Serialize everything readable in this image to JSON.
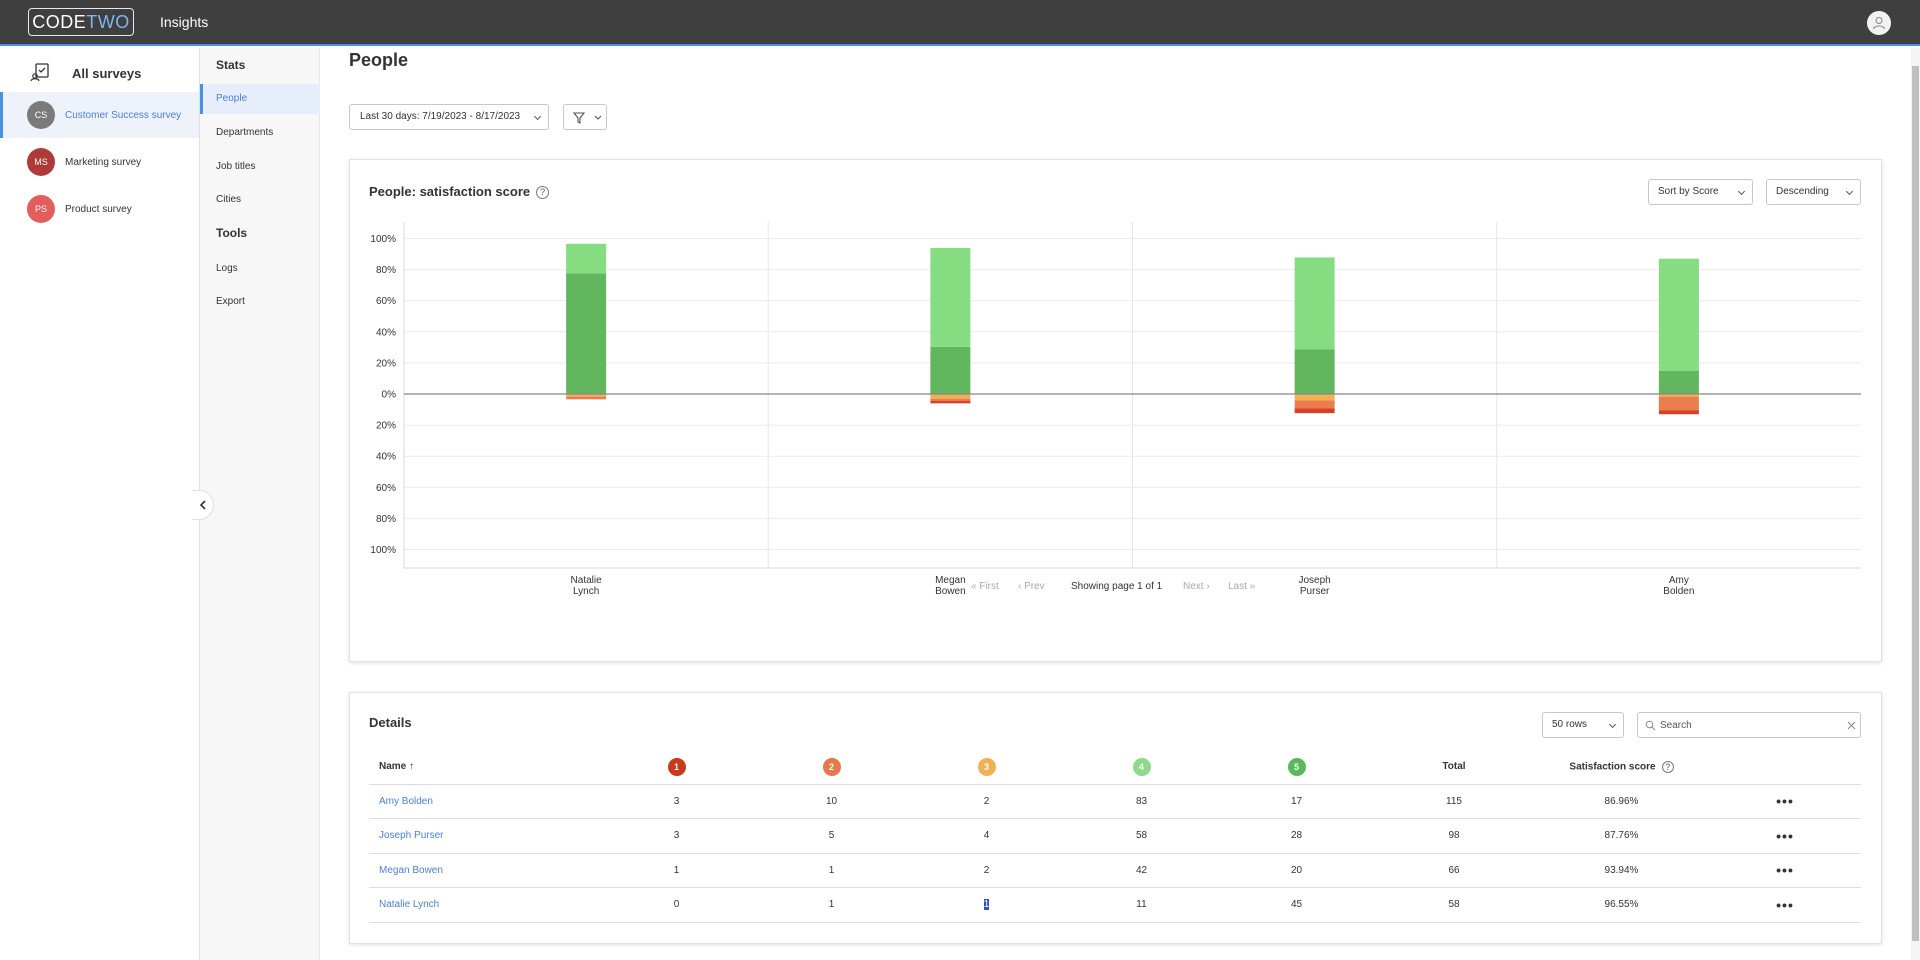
{
  "header": {
    "logo_code": "CODE",
    "logo_two": "TWO",
    "app_title": "Insights",
    "user_icon": "user-avatar-icon"
  },
  "surveys_panel": {
    "all_label": "All surveys",
    "items": [
      {
        "initials": "CS",
        "label": "Customer Success survey",
        "color": "#7a7a7a",
        "active": true
      },
      {
        "initials": "MS",
        "label": "Marketing survey",
        "color": "#b03a3a",
        "active": false
      },
      {
        "initials": "PS",
        "label": "Product survey",
        "color": "#e35d5d",
        "active": false
      }
    ]
  },
  "nav": {
    "stats_label": "Stats",
    "stats_items": [
      "People",
      "Departments",
      "Job titles",
      "Cities"
    ],
    "tools_label": "Tools",
    "tools_items": [
      "Logs",
      "Export"
    ],
    "active": "People"
  },
  "page": {
    "title": "People",
    "date_range": "Last 30 days: 7/19/2023 - 8/17/2023"
  },
  "chart_card": {
    "title": "People: satisfaction score",
    "sort_by": "Sort by Score",
    "order": "Descending",
    "pager": {
      "first": "First",
      "prev": "Prev",
      "info": "Showing page 1 of 1",
      "next": "Next",
      "last": "Last"
    }
  },
  "chart_data": {
    "type": "bar",
    "stacked": true,
    "diverging": true,
    "categories": [
      [
        "Natalie",
        "Lynch"
      ],
      [
        "Megan",
        "Bowen"
      ],
      [
        "Joseph",
        "Purser"
      ],
      [
        "Amy",
        "Bolden"
      ]
    ],
    "y_ticks_positive": [
      "100%",
      "80%",
      "60%",
      "40%",
      "20%",
      "0%"
    ],
    "y_ticks_negative": [
      "20%",
      "40%",
      "60%",
      "80%",
      "100%"
    ],
    "ylim": [
      -100,
      100
    ],
    "series": [
      {
        "color": "#62b65d",
        "values": [
          77.6,
          30.3,
          28.6,
          14.8
        ]
      },
      {
        "color": "#86dc81",
        "values": [
          19.0,
          63.6,
          59.2,
          72.2
        ]
      },
      {
        "color": "#f0b155",
        "values": [
          -1.7,
          -3.0,
          -4.1,
          -1.7
        ]
      },
      {
        "color": "#ec7e4d",
        "values": [
          -1.7,
          -1.5,
          -5.1,
          -8.7
        ]
      },
      {
        "color": "#d94126",
        "values": [
          0,
          -1.5,
          -3.1,
          -2.6
        ]
      }
    ]
  },
  "details": {
    "title": "Details",
    "rows_select": "50 rows",
    "search_placeholder": "Search",
    "columns": {
      "name": "Name",
      "total": "Total",
      "score": "Satisfaction score"
    },
    "sort_arrow": "↑",
    "ratings": [
      {
        "label": "1",
        "color": "#c8391d"
      },
      {
        "label": "2",
        "color": "#e8774a"
      },
      {
        "label": "3",
        "color": "#f0b155"
      },
      {
        "label": "4",
        "color": "#8fd98a"
      },
      {
        "label": "5",
        "color": "#5cb85c"
      }
    ],
    "rows": [
      {
        "name": "Amy Bolden",
        "r1": "3",
        "r2": "10",
        "r3": "2",
        "r4": "83",
        "r5": "17",
        "total": "115",
        "score": "86.96%"
      },
      {
        "name": "Joseph Purser",
        "r1": "3",
        "r2": "5",
        "r3": "4",
        "r4": "58",
        "r5": "28",
        "total": "98",
        "score": "87.76%"
      },
      {
        "name": "Megan Bowen",
        "r1": "1",
        "r2": "1",
        "r3": "2",
        "r4": "42",
        "r5": "20",
        "total": "66",
        "score": "93.94%"
      },
      {
        "name": "Natalie Lynch",
        "r1": "0",
        "r2": "1",
        "r3": "1",
        "r4": "11",
        "r5": "45",
        "total": "58",
        "score": "96.55%"
      }
    ],
    "more_label": "•••"
  }
}
